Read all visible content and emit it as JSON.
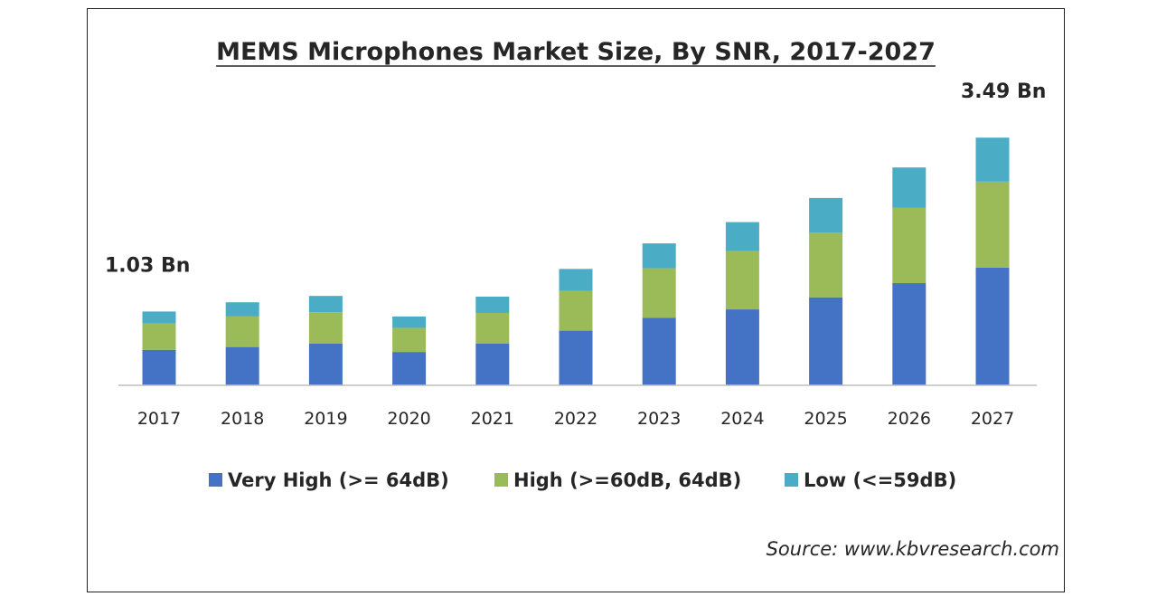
{
  "chart_data": {
    "type": "bar",
    "stacked": true,
    "title": "MEMS Microphones Market Size, By SNR, 2017-2027",
    "xlabel": "",
    "ylabel": "",
    "categories": [
      "2017",
      "2018",
      "2019",
      "2020",
      "2021",
      "2022",
      "2023",
      "2024",
      "2025",
      "2026",
      "2027"
    ],
    "series": [
      {
        "name": "Very High (>= 64dB)",
        "color": "#4472C4",
        "values": [
          0.5,
          0.54,
          0.59,
          0.47,
          0.59,
          0.77,
          0.95,
          1.07,
          1.24,
          1.44,
          1.66
        ]
      },
      {
        "name": "High (>=60dB, 64dB)",
        "color": "#9BBB59",
        "values": [
          0.37,
          0.43,
          0.44,
          0.34,
          0.43,
          0.56,
          0.7,
          0.82,
          0.91,
          1.06,
          1.21
        ]
      },
      {
        "name": "Low (<=59dB)",
        "color": "#4BACC6",
        "values": [
          0.17,
          0.2,
          0.23,
          0.16,
          0.23,
          0.31,
          0.35,
          0.41,
          0.49,
          0.57,
          0.62
        ]
      }
    ],
    "ylim": [
      0,
      3.6
    ],
    "grid": false,
    "legend_position": "bottom",
    "annotations": [
      {
        "category": "2017",
        "text": "1.03 Bn"
      },
      {
        "category": "2027",
        "text": "3.49 Bn"
      }
    ],
    "source": "Source: www.kbvresearch.com"
  }
}
